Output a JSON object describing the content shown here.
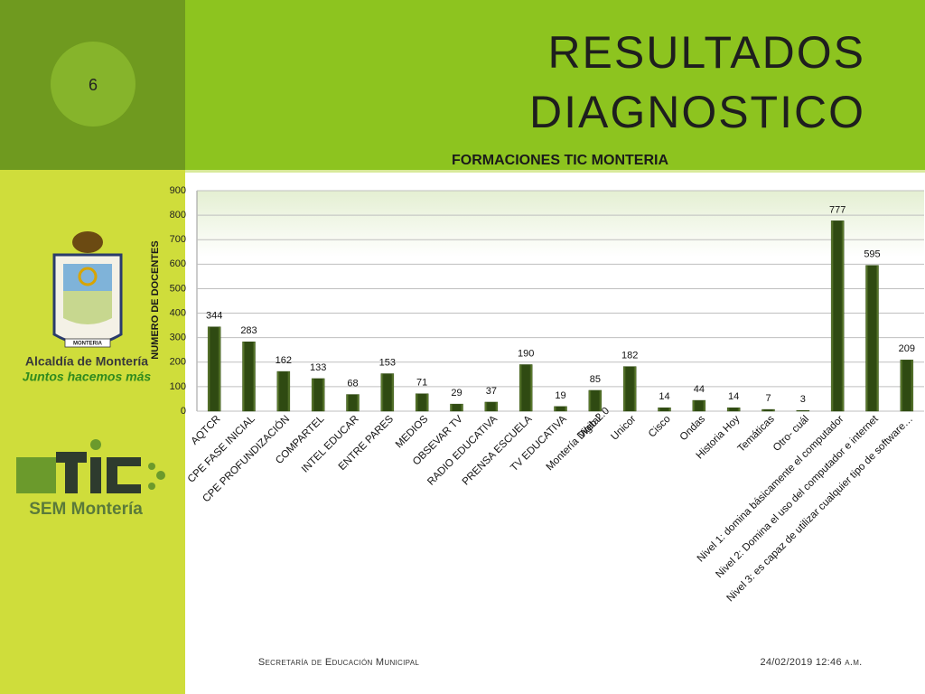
{
  "slide_number": "6",
  "title_lines": [
    "RESULTADOS",
    "DIAGNOSTICO"
  ],
  "logo_texts": {
    "city": "Alcaldía de Montería",
    "slogan": "Juntos hacemos más",
    "mtic": "SEM Montería",
    "crest_ribbon": "MONTERIA"
  },
  "footer": "Secretaría de Educación Municipal",
  "date": "24/02/2019 12:46 a.m.",
  "chart_data": {
    "type": "bar",
    "title": "FORMACIONES TIC MONTERIA",
    "y_label": "NUMERO DE DOCENTES",
    "categories": [
      "AQTCR",
      "CPE FASE INICIAL",
      "CPE PROFUNDIZACIÓN",
      "COMPARTEL",
      "INTEL EDUCAR",
      "ENTRE PARES",
      "MEDIOS",
      "OBSEVAR TV",
      "RADIO EDUCATIVA",
      "PRENSA ESCUELA",
      "TV EDUCATIVA",
      [
        "Web    2.0",
        "Montería Digital"
      ],
      "Unicor",
      "Cisco",
      "Ondas",
      "Historia    Hoy",
      "Temáticas",
      "Otro- cuál",
      "Nivel 1: domina básicamente el computador",
      "Nivel 2: Domina el uso del computador e internet",
      "Nivel 3: es capaz de utilizar cualquier tipo de software…"
    ],
    "values": [
      344,
      283,
      162,
      133,
      68,
      153,
      71,
      29,
      37,
      190,
      19,
      85,
      182,
      14,
      44,
      14,
      7,
      3,
      777,
      595,
      209
    ],
    "color": "#2f4a12",
    "ylim": [
      0,
      900
    ],
    "yticks": [
      0,
      100,
      200,
      300,
      400,
      500,
      600,
      700,
      800,
      900
    ],
    "grid": true
  }
}
